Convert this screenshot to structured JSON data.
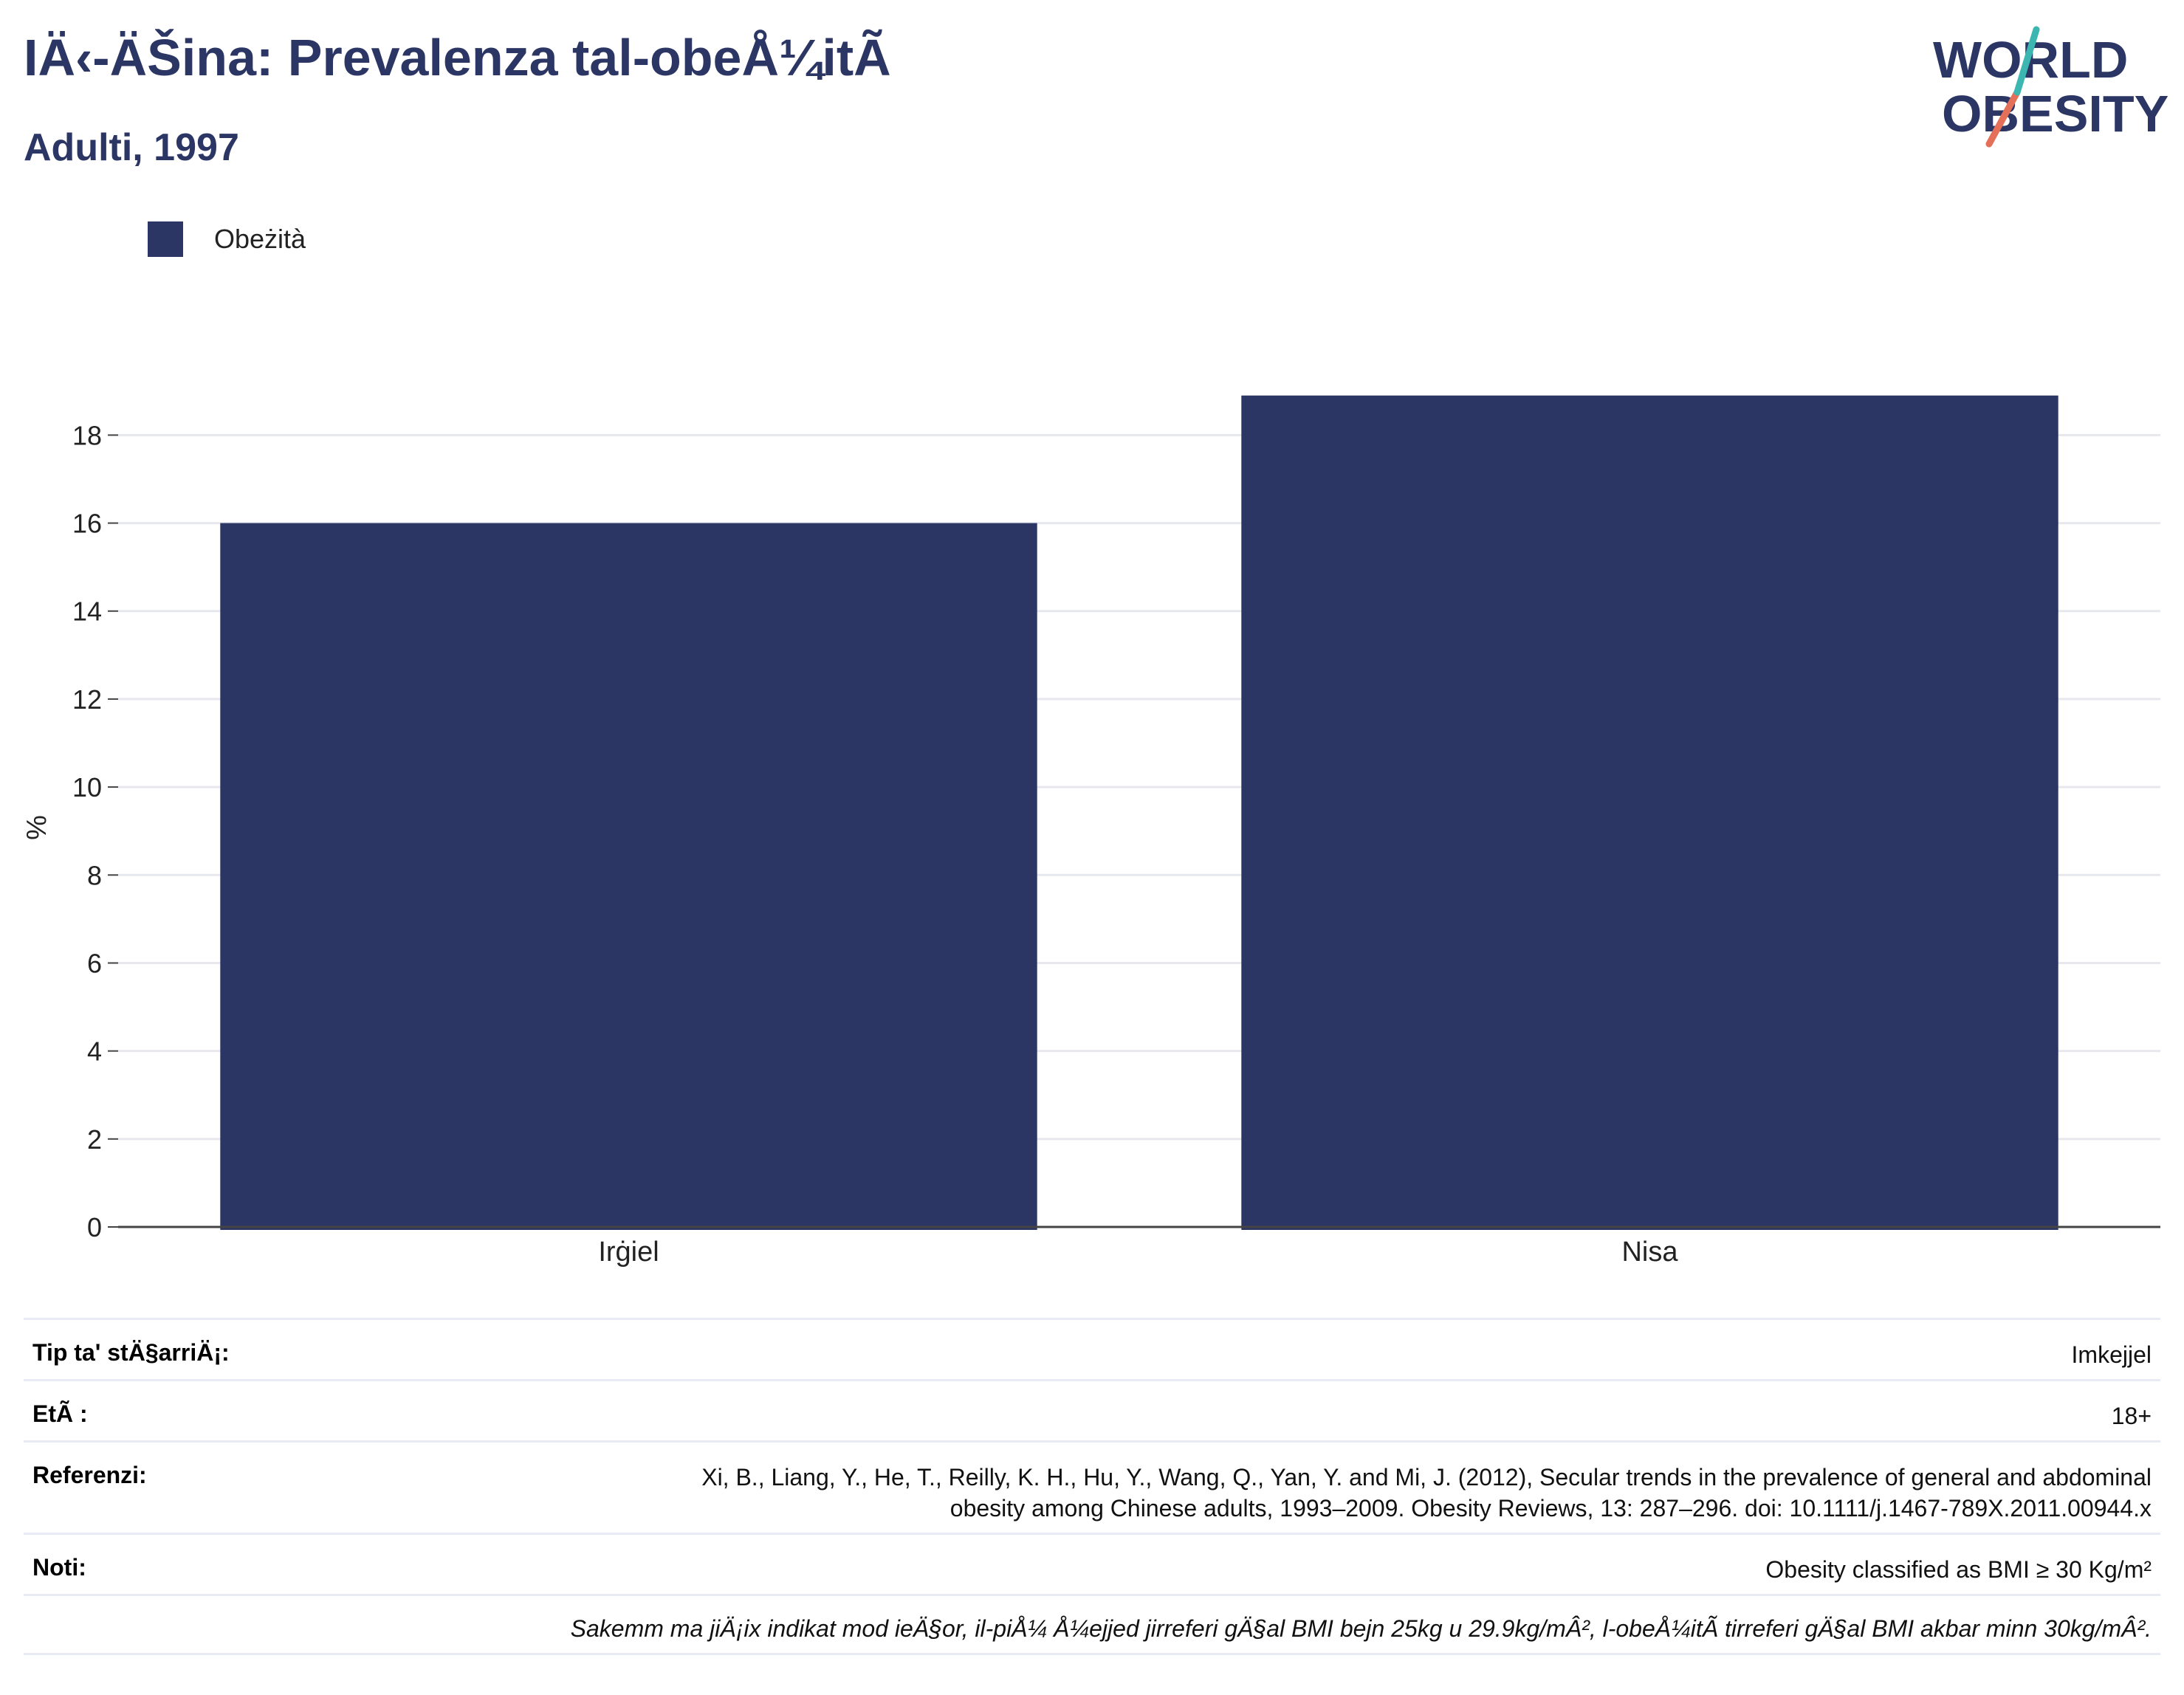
{
  "header": {
    "title": "IÄ‹-ÄŠina: Prevalenza tal-obeÅ¼itÃ",
    "subtitle": "Adulti, 1997"
  },
  "logo": {
    "line1": "WORLD",
    "line2": "OBESITY"
  },
  "colors": {
    "bar": "#2b3664",
    "title": "#2b3664",
    "logo_teal": "#3bb6b0",
    "logo_red": "#e5705a"
  },
  "chart_data": {
    "type": "bar",
    "categories": [
      "Irġiel",
      "Nisa"
    ],
    "series": [
      {
        "name": "Obeżità",
        "values": [
          16.0,
          18.9
        ]
      }
    ],
    "xlabel": "",
    "ylabel": "%",
    "ylim": [
      0,
      19.5
    ],
    "yticks": [
      0,
      2,
      4,
      6,
      8,
      10,
      12,
      14,
      16,
      18
    ],
    "grid": true,
    "legend_position": "top-left"
  },
  "info": {
    "rows": [
      {
        "label": "Tip ta' stÄ§arriÄ¡:",
        "value": "Imkejjel"
      },
      {
        "label": "EtÃ :",
        "value": "18+"
      },
      {
        "label": "Referenzi:",
        "value_lines": [
          "Xi, B., Liang, Y., He, T., Reilly, K. H., Hu, Y., Wang, Q., Yan, Y. and Mi, J. (2012), Secular trends in the prevalence of general and abdominal",
          "obesity among Chinese adults, 1993–2009. Obesity Reviews, 13: 287–296. doi: 10.1111/j.1467-789X.2011.00944.x"
        ]
      },
      {
        "label": "Noti:",
        "value": "Obesity classified as BMI ≥ 30 Kg/m²"
      }
    ],
    "footnote": "Sakemm ma jiÄ¡ix indikat mod ieÄ§or, il-piÅ¼ Å¼ejjed jirreferi gÄ§al BMI bejn 25kg u 29.9kg/mÂ², l-obeÅ¼itÃ  tirreferi gÄ§al BMI akbar minn 30kg/mÂ²."
  }
}
